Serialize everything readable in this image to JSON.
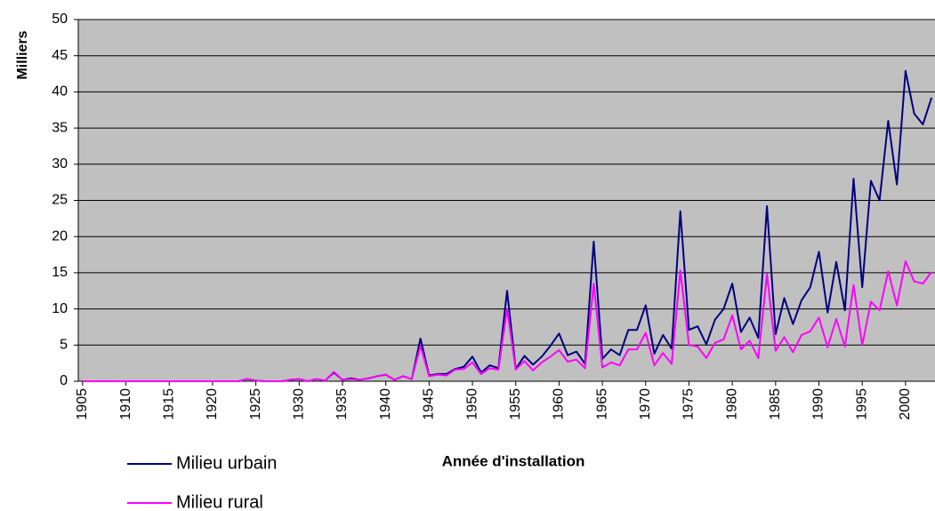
{
  "chart_data": {
    "type": "line",
    "ylabel": "Milliers",
    "xlabel": "Année d'installation",
    "x": [
      1905,
      1906,
      1907,
      1908,
      1909,
      1910,
      1911,
      1912,
      1913,
      1914,
      1915,
      1916,
      1917,
      1918,
      1919,
      1920,
      1921,
      1922,
      1923,
      1924,
      1925,
      1926,
      1927,
      1928,
      1929,
      1930,
      1931,
      1932,
      1933,
      1934,
      1935,
      1936,
      1937,
      1938,
      1939,
      1940,
      1941,
      1942,
      1943,
      1944,
      1945,
      1946,
      1947,
      1948,
      1949,
      1950,
      1951,
      1952,
      1953,
      1954,
      1955,
      1956,
      1957,
      1958,
      1959,
      1960,
      1961,
      1962,
      1963,
      1964,
      1965,
      1966,
      1967,
      1968,
      1969,
      1970,
      1971,
      1972,
      1973,
      1974,
      1975,
      1976,
      1977,
      1978,
      1979,
      1980,
      1981,
      1982,
      1983,
      1984,
      1985,
      1986,
      1987,
      1988,
      1989,
      1990,
      1991,
      1992,
      1993,
      1994,
      1995,
      1996,
      1997,
      1998,
      1999,
      2000,
      2001,
      2002,
      2003
    ],
    "series": [
      {
        "name": "Milieu urbain",
        "color": "#000080",
        "values": [
          0,
          0,
          0,
          0,
          0,
          0,
          0,
          0,
          0,
          0,
          0,
          0,
          0,
          0,
          0,
          0,
          0,
          0,
          0,
          0.3,
          0.1,
          0,
          0,
          0,
          0.2,
          0.3,
          0,
          0.3,
          0.1,
          1.2,
          0.2,
          0.4,
          0.2,
          0.4,
          0.7,
          0.9,
          0.2,
          0.7,
          0.3,
          5.9,
          0.8,
          1.0,
          1.0,
          1.7,
          2.0,
          3.4,
          1.2,
          2.2,
          1.8,
          12.5,
          1.7,
          3.5,
          2.3,
          3.4,
          4.9,
          6.6,
          3.6,
          4.1,
          2.4,
          19.3,
          3.1,
          4.4,
          3.6,
          7.1,
          7.1,
          10.5,
          3.8,
          6.4,
          4.5,
          23.5,
          7.1,
          7.6,
          5.1,
          8.5,
          10.0,
          13.5,
          6.8,
          8.8,
          6.0,
          24.2,
          6.5,
          11.5,
          7.9,
          11.2,
          13.0,
          17.9,
          9.5,
          16.5,
          9.8,
          28.0,
          13.0,
          27.7,
          25.0,
          36.0,
          27.2,
          42.9,
          37.0,
          35.5,
          39.2
        ]
      },
      {
        "name": "Milieu rural",
        "color": "#ff00ff",
        "values": [
          0,
          0,
          0,
          0,
          0,
          0,
          0,
          0,
          0,
          0,
          0,
          0,
          0,
          0,
          0,
          0,
          0,
          0,
          0,
          0.3,
          0.1,
          0,
          0,
          0,
          0.2,
          0.3,
          0,
          0.3,
          0.1,
          1.3,
          0.2,
          0.3,
          0.2,
          0.4,
          0.7,
          0.9,
          0.2,
          0.7,
          0.3,
          4.9,
          0.7,
          0.9,
          0.8,
          1.6,
          1.7,
          2.6,
          1.0,
          1.8,
          1.6,
          10.0,
          1.6,
          2.8,
          1.5,
          2.6,
          3.4,
          4.3,
          2.7,
          3.0,
          1.8,
          13.5,
          1.9,
          2.6,
          2.2,
          4.4,
          4.4,
          6.7,
          2.2,
          3.9,
          2.4,
          15.3,
          5.0,
          4.8,
          3.2,
          5.3,
          5.8,
          9.1,
          4.4,
          5.6,
          3.2,
          14.8,
          4.2,
          6.1,
          4.0,
          6.4,
          6.9,
          8.8,
          4.7,
          8.6,
          4.8,
          13.3,
          5.0,
          11.0,
          9.8,
          15.2,
          10.5,
          16.6,
          13.8,
          13.5,
          15.1
        ]
      }
    ],
    "xlim": [
      1904.5,
      2003.4
    ],
    "xticks": [
      1905,
      1910,
      1915,
      1920,
      1925,
      1930,
      1935,
      1940,
      1945,
      1950,
      1955,
      1960,
      1965,
      1970,
      1975,
      1980,
      1985,
      1990,
      1995,
      2000
    ],
    "ylim": [
      0,
      50
    ],
    "yticks": [
      0,
      5,
      10,
      15,
      20,
      25,
      30,
      35,
      40,
      45,
      50
    ],
    "grid": true,
    "legend": "bottom-left"
  }
}
